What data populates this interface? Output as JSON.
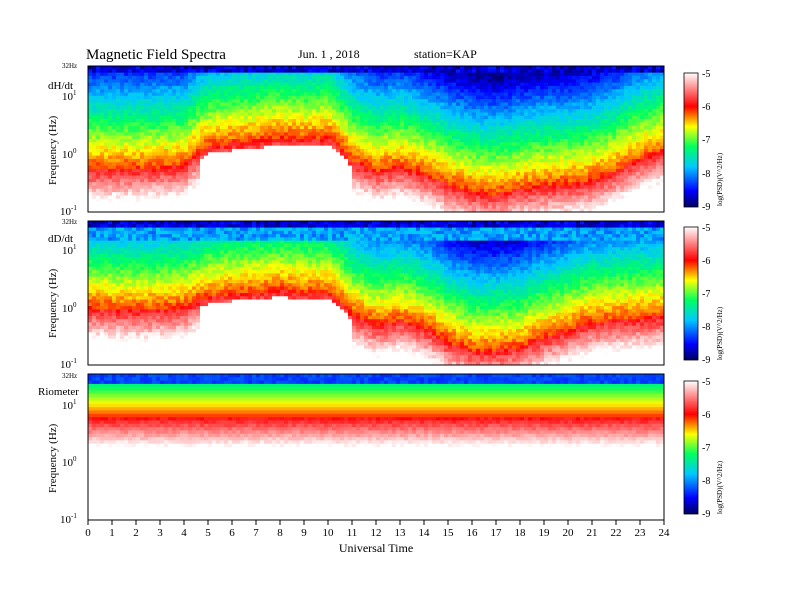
{
  "header": {
    "title": "Magnetic  Field  Spectra",
    "date": "Jun.  1  , 2018",
    "station": "station=KAP"
  },
  "chart_data": {
    "type": "heatmap",
    "xlabel": "Universal Time",
    "x_ticks": [
      "0",
      "1",
      "2",
      "3",
      "4",
      "5",
      "6",
      "7",
      "8",
      "9",
      "10",
      "11",
      "12",
      "13",
      "14",
      "15",
      "16",
      "17",
      "18",
      "19",
      "20",
      "21",
      "22",
      "23",
      "24"
    ],
    "xlim": [
      0,
      24
    ],
    "y_scale": "log",
    "ylim_hz": [
      0.1,
      32
    ],
    "y_tick_labels": {
      "top": "32Hz",
      "upper_base": "10",
      "upper_exp": "1",
      "mid": "10",
      "mid_exp": "0",
      "low_base": "10",
      "low_exp": "-1"
    },
    "colorbar": {
      "ticks": [
        "-5",
        "-6",
        "-7",
        "-8",
        "-9"
      ],
      "label": "log(PSD)(V^2/Hz)",
      "range": [
        -9,
        -5
      ],
      "colors": [
        "#000070",
        "#0000ff",
        "#00c8ff",
        "#00ff60",
        "#ffff00",
        "#ff0000",
        "#ffffff"
      ]
    },
    "panels": [
      {
        "name": "dH/dt",
        "ylabel": "Frequency (Hz)",
        "cutoff_hz_by_hour": [
          [
            0,
            0.55
          ],
          [
            2,
            0.55
          ],
          [
            4,
            0.6
          ],
          [
            5,
            1.3
          ],
          [
            6,
            1.5
          ],
          [
            7,
            1.6
          ],
          [
            8,
            1.9
          ],
          [
            9,
            1.7
          ],
          [
            10,
            1.9
          ],
          [
            11,
            0.75
          ],
          [
            12,
            0.5
          ],
          [
            13,
            0.6
          ],
          [
            14,
            0.45
          ],
          [
            15,
            0.3
          ],
          [
            16,
            0.22
          ],
          [
            17,
            0.2
          ],
          [
            18,
            0.25
          ],
          [
            19,
            0.28
          ],
          [
            20,
            0.3
          ],
          [
            21,
            0.35
          ],
          [
            22,
            0.5
          ],
          [
            23,
            0.8
          ],
          [
            24,
            1.1
          ]
        ],
        "white_hours": [
          4.7,
          11.0
        ]
      },
      {
        "name": "dD/dt",
        "ylabel": "Frequency (Hz)",
        "cutoff_hz_by_hour": [
          [
            0,
            1.0
          ],
          [
            2,
            0.9
          ],
          [
            4,
            1.0
          ],
          [
            5,
            1.5
          ],
          [
            6,
            1.7
          ],
          [
            7,
            1.8
          ],
          [
            8,
            2.0
          ],
          [
            9,
            1.8
          ],
          [
            10,
            1.8
          ],
          [
            11,
            0.75
          ],
          [
            12,
            0.5
          ],
          [
            13,
            0.6
          ],
          [
            14,
            0.45
          ],
          [
            15,
            0.25
          ],
          [
            16,
            0.18
          ],
          [
            17,
            0.18
          ],
          [
            18,
            0.2
          ],
          [
            19,
            0.3
          ],
          [
            20,
            0.4
          ],
          [
            21,
            0.55
          ],
          [
            22,
            0.6
          ],
          [
            23,
            0.65
          ],
          [
            24,
            0.7
          ]
        ],
        "white_hours": [
          4.7,
          11.0
        ]
      },
      {
        "name": "Riometer",
        "ylabel": "Frequency (Hz)",
        "cutoff_hz_by_hour": [
          [
            0,
            6.0
          ],
          [
            24,
            6.0
          ]
        ],
        "white_hours": []
      }
    ]
  }
}
